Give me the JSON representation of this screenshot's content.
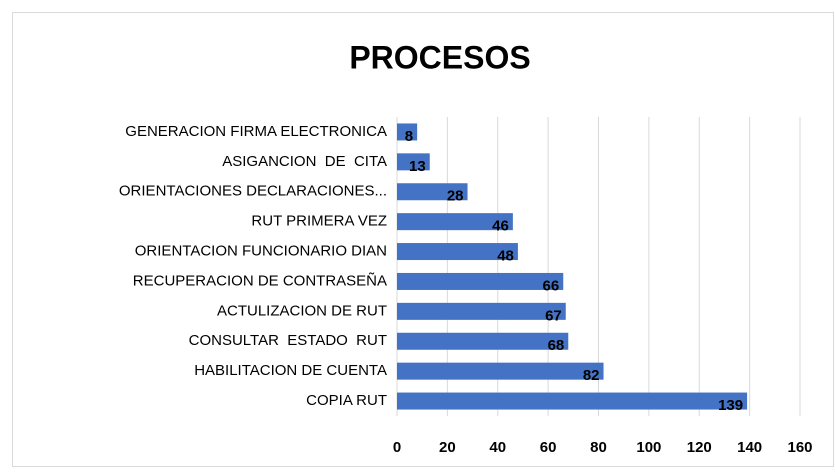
{
  "chart_data": {
    "type": "bar",
    "orientation": "horizontal",
    "title": "PROCESOS",
    "categories": [
      "GENERACION FIRMA ELECTRONICA",
      "ASIGANCION  DE  CITA",
      "ORIENTACIONES DECLARACIONES...",
      "RUT PRIMERA VEZ",
      "ORIENTACION FUNCIONARIO DIAN",
      "RECUPERACION DE CONTRASEÑA",
      "ACTULIZACION DE RUT",
      "CONSULTAR  ESTADO  RUT",
      "HABILITACION DE CUENTA",
      "COPIA RUT"
    ],
    "values": [
      8,
      13,
      28,
      46,
      48,
      66,
      67,
      68,
      82,
      139
    ],
    "color": "#4472c4",
    "xlim": [
      0,
      160
    ],
    "xticks": [
      0,
      20,
      40,
      60,
      80,
      100,
      120,
      140,
      160
    ],
    "grid": true
  }
}
